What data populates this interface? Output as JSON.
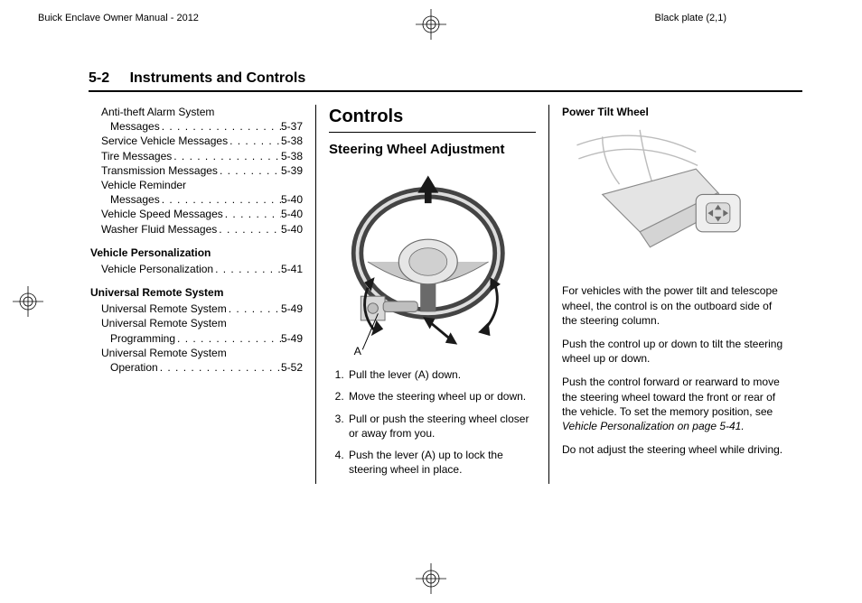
{
  "header": {
    "left": "Buick Enclave Owner Manual - 2012",
    "right": "Black plate (2,1)"
  },
  "page_head": {
    "number": "5-2",
    "title": "Instruments and Controls"
  },
  "toc": {
    "lines": [
      {
        "label": "Anti-theft Alarm System",
        "page": "",
        "indent": 1,
        "dots": false
      },
      {
        "label": "Messages",
        "page": "5-37",
        "indent": 2,
        "dots": true
      },
      {
        "label": "Service Vehicle Messages",
        "page": "5-38",
        "indent": 1,
        "dots": true
      },
      {
        "label": "Tire Messages",
        "page": "5-38",
        "indent": 1,
        "dots": true
      },
      {
        "label": "Transmission Messages",
        "page": "5-39",
        "indent": 1,
        "dots": true
      },
      {
        "label": "Vehicle Reminder",
        "page": "",
        "indent": 1,
        "dots": false
      },
      {
        "label": "Messages",
        "page": "5-40",
        "indent": 2,
        "dots": true
      },
      {
        "label": "Vehicle Speed Messages",
        "page": "5-40",
        "indent": 1,
        "dots": true
      },
      {
        "label": "Washer Fluid Messages",
        "page": "5-40",
        "indent": 1,
        "dots": true
      }
    ],
    "section2_head": "Vehicle Personalization",
    "section2": [
      {
        "label": "Vehicle Personalization",
        "page": "5-41",
        "indent": 1,
        "dots": true
      }
    ],
    "section3_head": "Universal Remote System",
    "section3": [
      {
        "label": "Universal Remote System",
        "page": "5-49",
        "indent": 1,
        "dots": true
      },
      {
        "label": "Universal Remote System",
        "page": "",
        "indent": 1,
        "dots": false
      },
      {
        "label": "Programming",
        "page": "5-49",
        "indent": 2,
        "dots": true
      },
      {
        "label": "Universal Remote System",
        "page": "",
        "indent": 1,
        "dots": false
      },
      {
        "label": "Operation",
        "page": "5-52",
        "indent": 2,
        "dots": true
      }
    ]
  },
  "col2": {
    "h2": "Controls",
    "h3": "Steering Wheel Adjustment",
    "fig_label": "A",
    "steps": [
      "Pull the lever (A) down.",
      "Move the steering wheel up or down.",
      "Pull or push the steering wheel closer or away from you.",
      "Push the lever (A) up to lock the steering wheel in place."
    ]
  },
  "col3": {
    "h4": "Power Tilt Wheel",
    "p1": "For vehicles with the power tilt and telescope wheel, the control is on the outboard side of the steering column.",
    "p2": "Push the control up or down to tilt the steering wheel up or down.",
    "p3a": "Push the control forward or rearward to move the steering wheel toward the front or rear of the vehicle. To set the memory position, see ",
    "p3b": "Vehicle Personalization on page 5-41.",
    "p4": "Do not adjust the steering wheel while driving."
  },
  "style": {
    "text_color": "#000000",
    "bg": "#ffffff",
    "rule_color": "#000000",
    "fig_stroke": "#6a6a6a",
    "fig_fill_light": "#e6e6e6",
    "fig_fill_mid": "#c8c8c8",
    "fig_fill_dark": "#8a8a8a",
    "arrow_fill": "#1a1a1a"
  }
}
